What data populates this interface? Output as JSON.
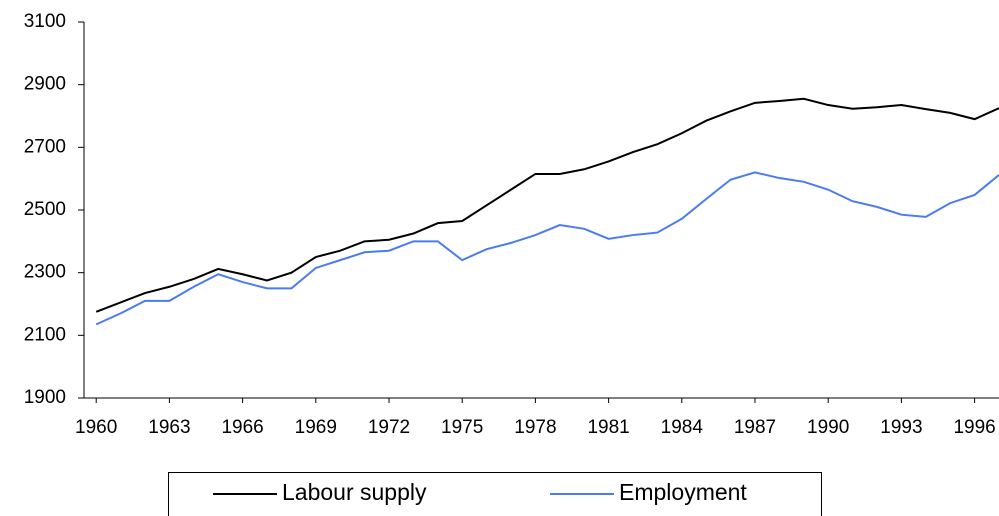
{
  "chart_data": {
    "type": "line",
    "x": [
      1960,
      1961,
      1962,
      1963,
      1964,
      1965,
      1966,
      1967,
      1968,
      1969,
      1970,
      1971,
      1972,
      1973,
      1974,
      1975,
      1976,
      1977,
      1978,
      1979,
      1980,
      1981,
      1982,
      1983,
      1984,
      1985,
      1986,
      1987,
      1988,
      1989,
      1990,
      1991,
      1992,
      1993,
      1994,
      1995,
      1996,
      1997
    ],
    "series": [
      {
        "name": "Labour supply",
        "color": "#000000",
        "values": [
          2175,
          2205,
          2235,
          2255,
          2280,
          2312,
          2295,
          2275,
          2300,
          2350,
          2370,
          2400,
          2405,
          2425,
          2458,
          2465,
          2515,
          2565,
          2615,
          2615,
          2630,
          2655,
          2685,
          2710,
          2745,
          2785,
          2815,
          2842,
          2848,
          2855,
          2835,
          2823,
          2828,
          2835,
          2822,
          2810,
          2790,
          2825
        ]
      },
      {
        "name": "Employment",
        "color": "#4a7cf0",
        "values": [
          2135,
          2170,
          2210,
          2210,
          2255,
          2295,
          2270,
          2250,
          2250,
          2315,
          2340,
          2365,
          2370,
          2400,
          2400,
          2340,
          2375,
          2395,
          2420,
          2452,
          2440,
          2408,
          2420,
          2428,
          2472,
          2535,
          2597,
          2620,
          2602,
          2590,
          2565,
          2528,
          2510,
          2485,
          2478,
          2522,
          2548,
          2612
        ]
      }
    ],
    "xlim": [
      1959.5,
      1997
    ],
    "xticks": [
      1960,
      1963,
      1966,
      1969,
      1972,
      1975,
      1978,
      1981,
      1984,
      1987,
      1990,
      1993,
      1996
    ],
    "ylim": [
      1900,
      3100
    ],
    "yticks": [
      1900,
      2100,
      2300,
      2500,
      2700,
      2900,
      3100
    ],
    "legend": "bottom"
  }
}
